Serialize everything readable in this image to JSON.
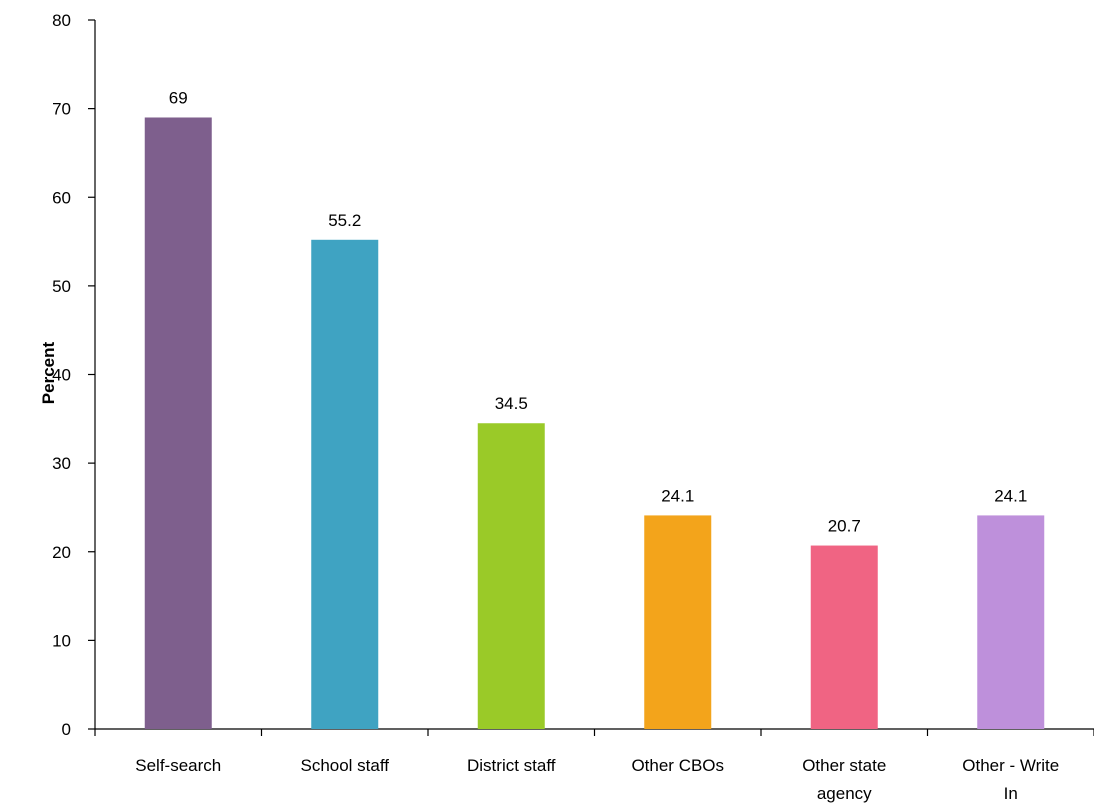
{
  "chart_data": {
    "type": "bar",
    "title": "",
    "xlabel": "",
    "ylabel": "Percent",
    "ylim": [
      0,
      80
    ],
    "ytick_step": 10,
    "yticks": [
      "0",
      "10",
      "20",
      "30",
      "40",
      "50",
      "60",
      "70",
      "80"
    ],
    "grid": false,
    "legend": "none",
    "categories": [
      {
        "lines": [
          "Self-search"
        ],
        "value": 69,
        "label": "69",
        "color": "#7E5F8D"
      },
      {
        "lines": [
          "School staff"
        ],
        "value": 55.2,
        "label": "55.2",
        "color": "#3FA3C2"
      },
      {
        "lines": [
          "District staff"
        ],
        "value": 34.5,
        "label": "34.5",
        "color": "#9ACA28"
      },
      {
        "lines": [
          "Other CBOs"
        ],
        "value": 24.1,
        "label": "24.1",
        "color": "#F3A41B"
      },
      {
        "lines": [
          "Other state",
          "agency"
        ],
        "value": 20.7,
        "label": "20.7",
        "color": "#F06483"
      },
      {
        "lines": [
          "Other - Write",
          "In"
        ],
        "value": 24.1,
        "label": "24.1",
        "color": "#BE90DB"
      }
    ]
  }
}
